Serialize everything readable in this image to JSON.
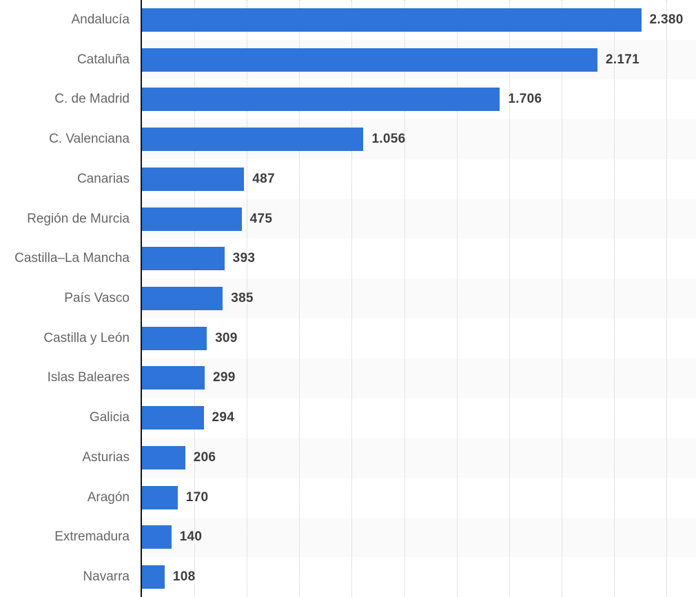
{
  "chart_data": {
    "type": "bar",
    "orientation": "horizontal",
    "title": "",
    "xlabel": "",
    "ylabel": "",
    "legend": "none",
    "grid": "vertical-dotted",
    "categories": [
      "Andalucía",
      "Cataluña",
      "C. de Madrid",
      "C. Valenciana",
      "Canarias",
      "Región de Murcia",
      "Castilla–La Mancha",
      "País Vasco",
      "Castilla y León",
      "Islas Baleares",
      "Galicia",
      "Asturias",
      "Aragón",
      "Extremadura",
      "Navarra"
    ],
    "values": [
      2380,
      2171,
      1706,
      1056,
      487,
      475,
      393,
      385,
      309,
      299,
      294,
      206,
      170,
      140,
      108
    ],
    "display_values": [
      "2.380",
      "2.171",
      "1.706",
      "1.056",
      "487",
      "475",
      "393",
      "385",
      "309",
      "299",
      "294",
      "206",
      "170",
      "140",
      "108"
    ],
    "xlim": [
      0,
      2641
    ],
    "gridline_step": 250,
    "colors": {
      "bar": "#2e74da",
      "row_stripe": "#fafafa",
      "gridline": "#cccccc",
      "axis": "#141414",
      "category_label": "#666666",
      "value_label": "#3e3e3e",
      "background": "#ffffff"
    }
  }
}
